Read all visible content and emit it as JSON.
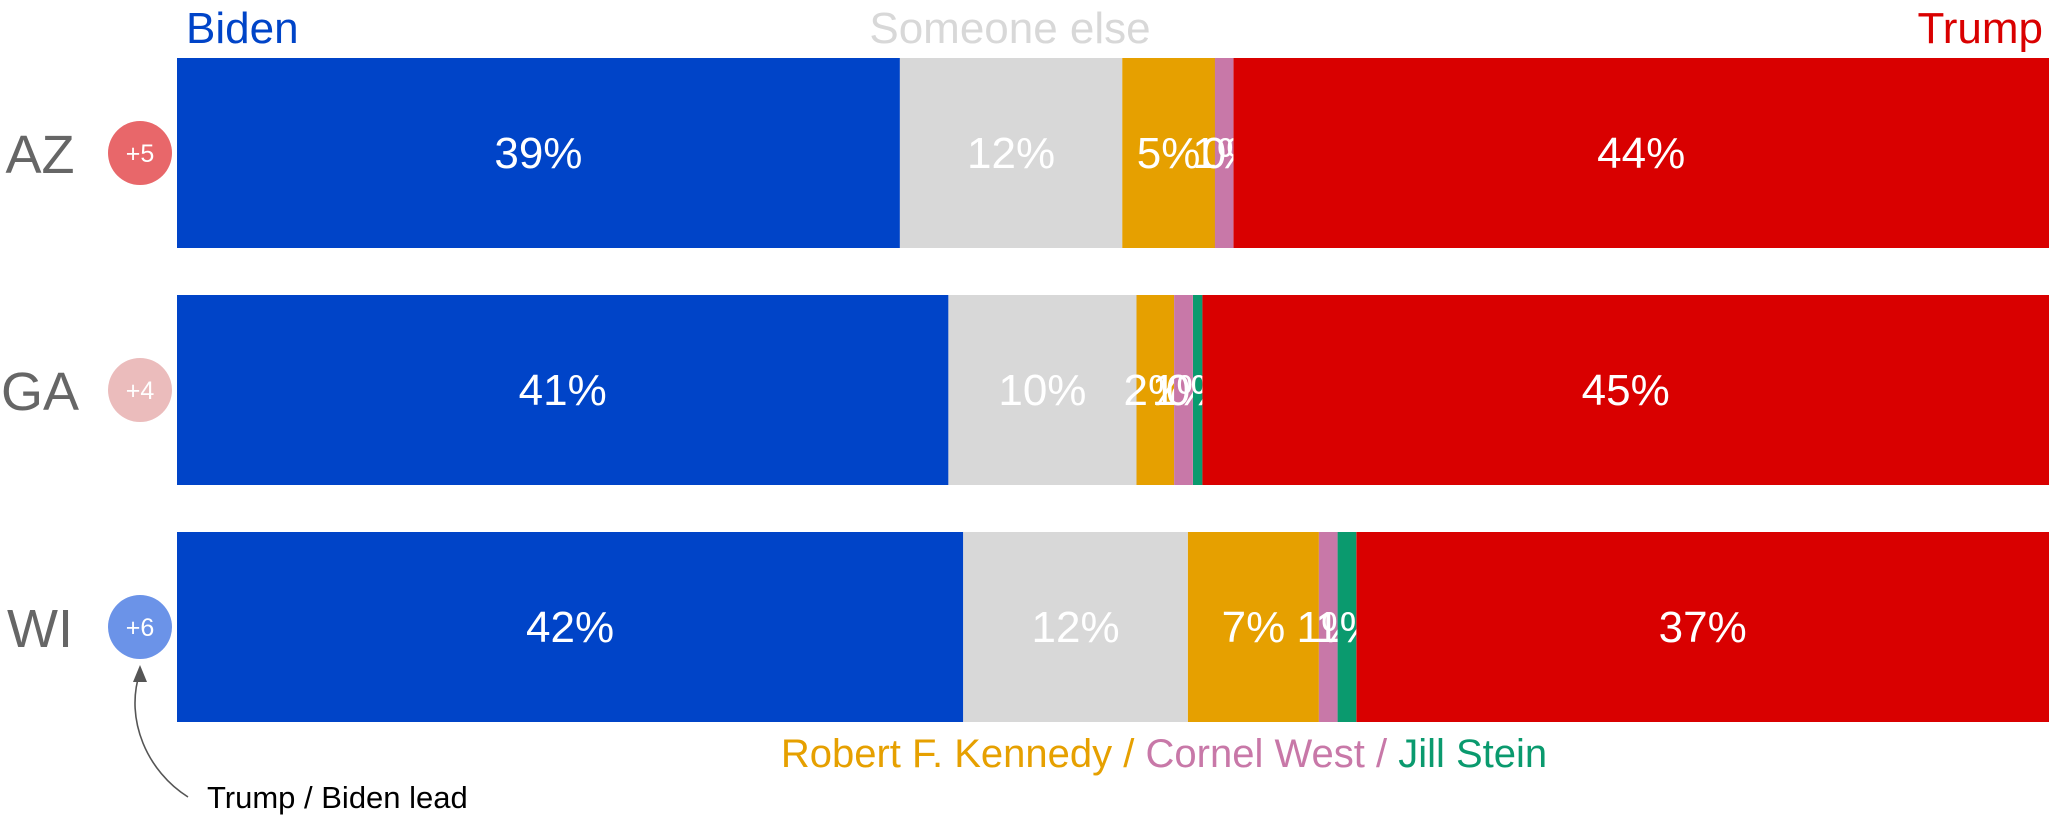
{
  "chart_data": {
    "type": "bar",
    "orientation": "horizontal",
    "stacked": true,
    "categories": [
      "AZ",
      "GA",
      "WI"
    ],
    "series": [
      {
        "name": "Biden",
        "color": "#0044c8",
        "values": [
          39,
          41,
          42
        ],
        "labels": [
          "39%",
          "41%",
          "42%"
        ]
      },
      {
        "name": "Someone else",
        "color": "#d8d8d8",
        "values": [
          12,
          10,
          12
        ],
        "labels": [
          "12%",
          "10%",
          "12%"
        ]
      },
      {
        "name": "Robert F. Kennedy",
        "color": "#e6a000",
        "values": [
          5,
          2,
          7
        ],
        "labels": [
          "5%",
          "2%",
          "7%"
        ]
      },
      {
        "name": "Cornel West",
        "color": "#c878a8",
        "values": [
          1,
          1,
          1
        ],
        "labels": [
          "1%",
          "1%",
          "1%"
        ]
      },
      {
        "name": "Jill Stein",
        "color": "#0a9a6e",
        "values": [
          0,
          0.5,
          1
        ],
        "labels": [
          "0%",
          "0%",
          "1%"
        ]
      },
      {
        "name": "Trump",
        "color": "#d90000",
        "values": [
          44,
          45,
          37
        ],
        "labels": [
          "44%",
          "45%",
          "37%"
        ]
      }
    ],
    "leads": [
      {
        "state": "AZ",
        "label": "+5",
        "color": "#e8676a"
      },
      {
        "state": "GA",
        "label": "+4",
        "color": "#ebbcbc"
      },
      {
        "state": "WI",
        "label": "+6",
        "color": "#6b93e8"
      }
    ],
    "header": {
      "biden": "Biden",
      "someone_else": "Someone else",
      "trump": "Trump"
    },
    "bottom_legend": {
      "kennedy": "Robert F. Kennedy",
      "sep1": " / ",
      "west": "Cornel West",
      "sep2": " / ",
      "stein": "Jill Stein"
    },
    "annotation": "Trump / Biden lead",
    "xlim": [
      0,
      100
    ],
    "grid": false
  }
}
